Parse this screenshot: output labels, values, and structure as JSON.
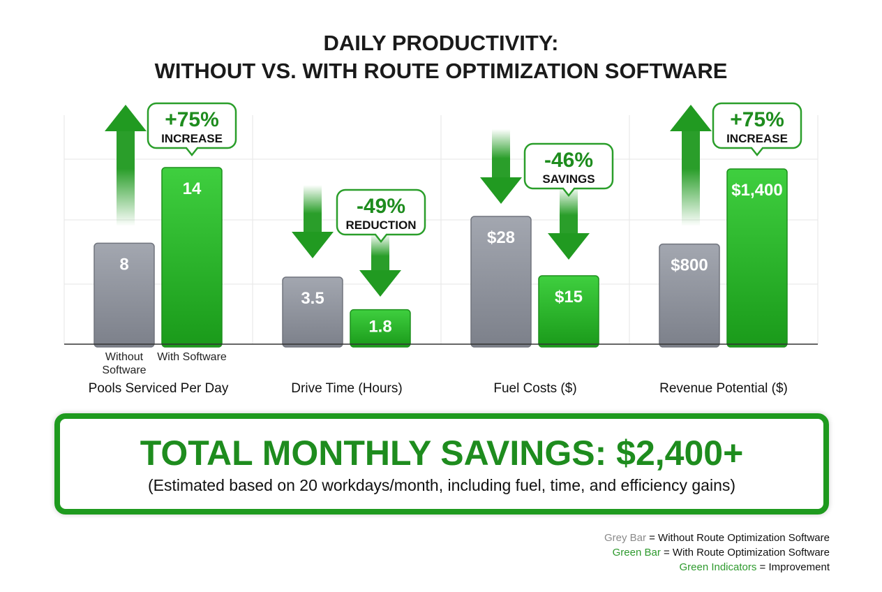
{
  "title_line1": "DAILY PRODUCTIVITY:",
  "title_line2": "WITHOUT VS. WITH ROUTE OPTIMIZATION SOFTWARE",
  "colors": {
    "grey_bar": "#8e929c",
    "green_bar": "#2fb52f",
    "accent": "#1e8c1e"
  },
  "chart_data": [
    {
      "type": "bar",
      "category": "Pools Serviced Per Day",
      "series": [
        {
          "name": "Without Software",
          "value": 8,
          "label": "8"
        },
        {
          "name": "With Software",
          "value": 14,
          "label": "14"
        }
      ],
      "change": "+75%",
      "change_label": "INCREASE",
      "direction": "up",
      "grid": true
    },
    {
      "type": "bar",
      "category": "Drive Time (Hours)",
      "series": [
        {
          "name": "Without Software",
          "value": 3.5,
          "label": "3.5"
        },
        {
          "name": "With Software",
          "value": 1.8,
          "label": "1.8"
        }
      ],
      "change": "-49%",
      "change_label": "REDUCTION",
      "direction": "down",
      "grid": true
    },
    {
      "type": "bar",
      "category": "Fuel Costs ($)",
      "series": [
        {
          "name": "Without Software",
          "value": 28,
          "label": "$28"
        },
        {
          "name": "With Software",
          "value": 15,
          "label": "$15"
        }
      ],
      "change": "-46%",
      "change_label": "SAVINGS",
      "direction": "down",
      "grid": true
    },
    {
      "type": "bar",
      "category": "Revenue Potential ($)",
      "series": [
        {
          "name": "Without Software",
          "value": 800,
          "label": "$800"
        },
        {
          "name": "With Software",
          "value": 1400,
          "label": "$1,400"
        }
      ],
      "change": "+75%",
      "change_label": "INCREASE",
      "direction": "up",
      "grid": true
    }
  ],
  "bar_labels": {
    "without": "Without Software",
    "with": "With Software"
  },
  "total": {
    "headline": "TOTAL MONTHLY SAVINGS: $2,400+",
    "note": "(Estimated based on 20 workdays/month, including fuel, time, and efficiency gains)"
  },
  "legend": [
    {
      "key": "Grey Bar",
      "text": " = Without Route Optimization Software",
      "color": "#8a8a8a"
    },
    {
      "key": "Green Bar",
      "text": " = With Route Optimization Software",
      "color": "#2e9a2e"
    },
    {
      "key": "Green Indicators",
      "text": " = Improvement",
      "color": "#2e9a2e"
    }
  ]
}
